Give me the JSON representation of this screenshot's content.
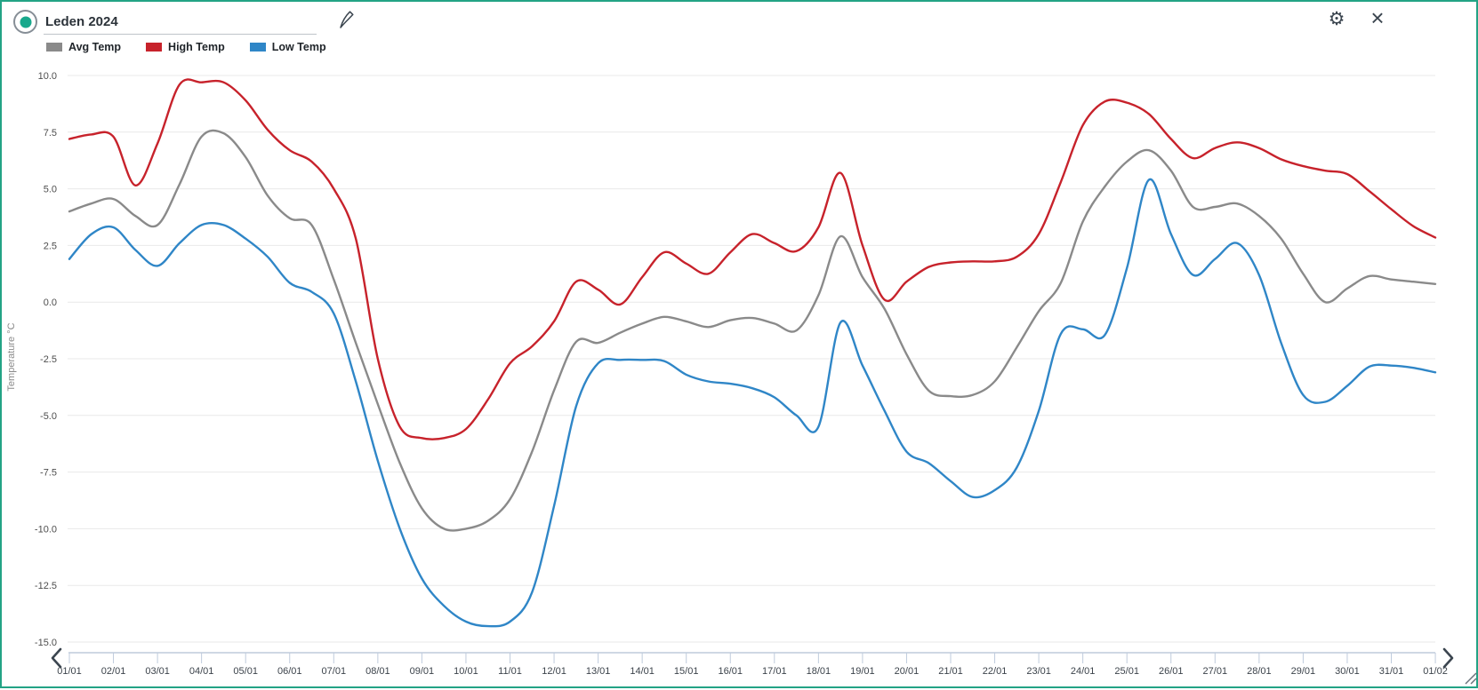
{
  "window": {
    "accent_color": "#23a385",
    "icon_color": "#3b454f"
  },
  "header": {
    "title_field": {
      "value": "Leden 2024"
    },
    "edit_icon": "pencil",
    "settings_icon": "gear",
    "close_icon": "close"
  },
  "legend": {
    "items": [
      {
        "label": "Avg Temp",
        "color": "#8a8a8a"
      },
      {
        "label": "High Temp",
        "color": "#c7222b"
      },
      {
        "label": "Low Temp",
        "color": "#2f86c7"
      }
    ]
  },
  "chart_data": {
    "type": "line",
    "title": "Leden 2024",
    "xlabel": "",
    "ylabel": "Temperature °C",
    "ylim": [
      -15,
      10
    ],
    "grid": "horizontal",
    "legend_position": "top-left",
    "y_ticks": [
      "10.0",
      "7.5",
      "5.0",
      "2.5",
      "0.0",
      "-2.5",
      "-5.0",
      "-7.5",
      "-10.0",
      "-12.5",
      "-15.0"
    ],
    "x_categories": [
      "01/01",
      "02/01",
      "03/01",
      "04/01",
      "05/01",
      "06/01",
      "07/01",
      "08/01",
      "09/01",
      "10/01",
      "11/01",
      "12/01",
      "13/01",
      "14/01",
      "15/01",
      "16/01",
      "17/01",
      "18/01",
      "19/01",
      "20/01",
      "21/01",
      "22/01",
      "23/01",
      "24/01",
      "25/01",
      "26/01",
      "27/01",
      "28/01",
      "29/01",
      "30/01",
      "31/01",
      "01/02"
    ],
    "x_start_day": 1,
    "x_step_days": 0.5,
    "series": [
      {
        "name": "Avg Temp",
        "color": "#8a8a8a",
        "values": [
          4.0,
          4.35,
          4.55,
          3.8,
          3.4,
          5.2,
          7.3,
          7.45,
          6.4,
          4.7,
          3.7,
          3.4,
          1.0,
          -1.8,
          -4.5,
          -7.1,
          -9.1,
          -10.0,
          -10.0,
          -9.65,
          -8.7,
          -6.6,
          -3.9,
          -1.75,
          -1.8,
          -1.35,
          -0.95,
          -0.65,
          -0.85,
          -1.1,
          -0.8,
          -0.7,
          -0.95,
          -1.25,
          0.3,
          2.9,
          1.1,
          -0.3,
          -2.3,
          -3.9,
          -4.15,
          -4.1,
          -3.5,
          -2.0,
          -0.4,
          0.85,
          3.55,
          5.1,
          6.2,
          6.7,
          5.8,
          4.2,
          4.2,
          4.35,
          3.8,
          2.8,
          1.25,
          0.0,
          0.6,
          1.15,
          1.0,
          0.9,
          0.8
        ]
      },
      {
        "name": "High Temp",
        "color": "#c7222b",
        "values": [
          7.2,
          7.4,
          7.3,
          5.15,
          7.0,
          9.6,
          9.7,
          9.7,
          8.9,
          7.6,
          6.7,
          6.2,
          5.0,
          2.8,
          -2.5,
          -5.5,
          -6.0,
          -6.0,
          -5.6,
          -4.3,
          -2.7,
          -1.95,
          -0.85,
          0.9,
          0.55,
          -0.1,
          1.1,
          2.2,
          1.7,
          1.25,
          2.2,
          3.0,
          2.6,
          2.25,
          3.3,
          5.7,
          2.5,
          0.1,
          0.9,
          1.55,
          1.75,
          1.8,
          1.8,
          2.0,
          3.0,
          5.3,
          7.8,
          8.85,
          8.8,
          8.3,
          7.2,
          6.35,
          6.8,
          7.05,
          6.8,
          6.3,
          6.0,
          5.8,
          5.65,
          4.9,
          4.1,
          3.35,
          2.85
        ]
      },
      {
        "name": "Low Temp",
        "color": "#2f86c7",
        "values": [
          1.9,
          3.0,
          3.3,
          2.3,
          1.6,
          2.6,
          3.4,
          3.4,
          2.8,
          2.0,
          0.85,
          0.45,
          -0.5,
          -3.5,
          -7.0,
          -10.0,
          -12.2,
          -13.4,
          -14.1,
          -14.3,
          -14.1,
          -12.8,
          -9.0,
          -4.6,
          -2.7,
          -2.55,
          -2.55,
          -2.6,
          -3.2,
          -3.5,
          -3.6,
          -3.8,
          -4.2,
          -5.0,
          -5.5,
          -0.9,
          -2.8,
          -4.8,
          -6.6,
          -7.1,
          -7.9,
          -8.6,
          -8.3,
          -7.3,
          -4.8,
          -1.4,
          -1.2,
          -1.45,
          1.5,
          5.4,
          3.0,
          1.2,
          1.9,
          2.6,
          1.2,
          -1.8,
          -4.1,
          -4.4,
          -3.7,
          -2.85,
          -2.8,
          -2.9,
          -3.1
        ]
      }
    ]
  }
}
